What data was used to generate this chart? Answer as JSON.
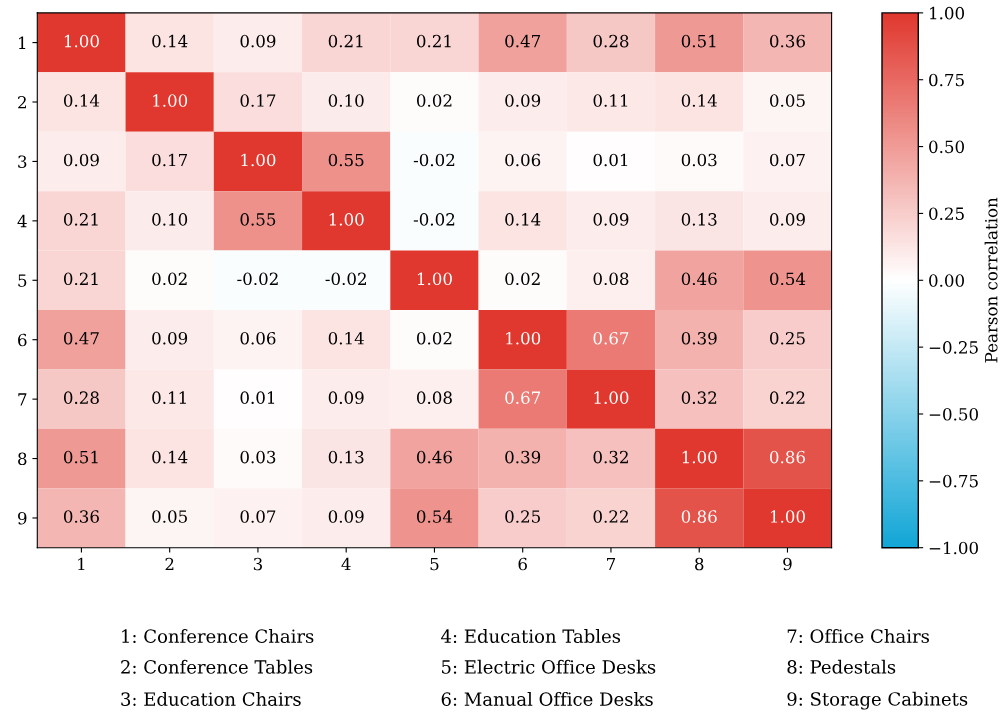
{
  "chart_data": {
    "type": "heatmap",
    "categories": [
      "1",
      "2",
      "3",
      "4",
      "5",
      "6",
      "7",
      "8",
      "9"
    ],
    "y_categories": [
      "1",
      "2",
      "3",
      "4",
      "5",
      "6",
      "7",
      "8",
      "9"
    ],
    "cells": [
      [
        1.0,
        0.14,
        0.09,
        0.21,
        0.21,
        0.47,
        0.28,
        0.51,
        0.36
      ],
      [
        0.14,
        1.0,
        0.17,
        0.1,
        0.02,
        0.09,
        0.11,
        0.14,
        0.05
      ],
      [
        0.09,
        0.17,
        1.0,
        0.55,
        -0.02,
        0.06,
        0.01,
        0.03,
        0.07
      ],
      [
        0.21,
        0.1,
        0.55,
        1.0,
        -0.02,
        0.14,
        0.09,
        0.13,
        0.09
      ],
      [
        0.21,
        0.02,
        -0.02,
        -0.02,
        1.0,
        0.02,
        0.08,
        0.46,
        0.54
      ],
      [
        0.47,
        0.09,
        0.06,
        0.14,
        0.02,
        1.0,
        0.67,
        0.39,
        0.25
      ],
      [
        0.28,
        0.11,
        0.01,
        0.09,
        0.08,
        0.67,
        1.0,
        0.32,
        0.22
      ],
      [
        0.51,
        0.14,
        0.03,
        0.13,
        0.46,
        0.39,
        0.32,
        1.0,
        0.86
      ],
      [
        0.36,
        0.05,
        0.07,
        0.09,
        0.54,
        0.25,
        0.22,
        0.86,
        1.0
      ]
    ],
    "cell_labels": [
      [
        "1.00",
        "0.14",
        "0.09",
        "0.21",
        "0.21",
        "0.47",
        "0.28",
        "0.51",
        "0.36"
      ],
      [
        "0.14",
        "1.00",
        "0.17",
        "0.10",
        "0.02",
        "0.09",
        "0.11",
        "0.14",
        "0.05"
      ],
      [
        "0.09",
        "0.17",
        "1.00",
        "0.55",
        "-0.02",
        "0.06",
        "0.01",
        "0.03",
        "0.07"
      ],
      [
        "0.21",
        "0.10",
        "0.55",
        "1.00",
        "-0.02",
        "0.14",
        "0.09",
        "0.13",
        "0.09"
      ],
      [
        "0.21",
        "0.02",
        "-0.02",
        "-0.02",
        "1.00",
        "0.02",
        "0.08",
        "0.46",
        "0.54"
      ],
      [
        "0.47",
        "0.09",
        "0.06",
        "0.14",
        "0.02",
        "1.00",
        "0.67",
        "0.39",
        "0.25"
      ],
      [
        "0.28",
        "0.11",
        "0.01",
        "0.09",
        "0.08",
        "0.67",
        "1.00",
        "0.32",
        "0.22"
      ],
      [
        "0.51",
        "0.14",
        "0.03",
        "0.13",
        "0.46",
        "0.39",
        "0.32",
        "1.00",
        "0.86"
      ],
      [
        "0.36",
        "0.05",
        "0.07",
        "0.09",
        "0.54",
        "0.25",
        "0.22",
        "0.86",
        "1.00"
      ]
    ],
    "colors": [
      "#12a6d6",
      "#ffffff",
      "#e0382e"
    ],
    "clim": [
      -1,
      1
    ],
    "cticks": [
      {
        "value": -1,
        "label": "−1.00"
      },
      {
        "value": -0.75,
        "label": "−0.75"
      },
      {
        "value": -0.5,
        "label": "−0.50"
      },
      {
        "value": -0.25,
        "label": "−0.25"
      },
      {
        "value": 0,
        "label": "0.00"
      },
      {
        "value": 0.25,
        "label": "0.25"
      },
      {
        "value": 0.5,
        "label": "0.50"
      },
      {
        "value": 0.75,
        "label": "0.75"
      },
      {
        "value": 1,
        "label": "1.00"
      }
    ],
    "clabel": "Pearson correlation",
    "annotations": [
      "1: Conference Chairs",
      "2: Conference Tables",
      "3: Education Chairs",
      "4: Education Tables",
      "5: Electric Office Desks",
      "6: Manual Office Desks",
      "7: Office Chairs",
      "8: Pedestals",
      "9: Storage Cabinets"
    ]
  }
}
